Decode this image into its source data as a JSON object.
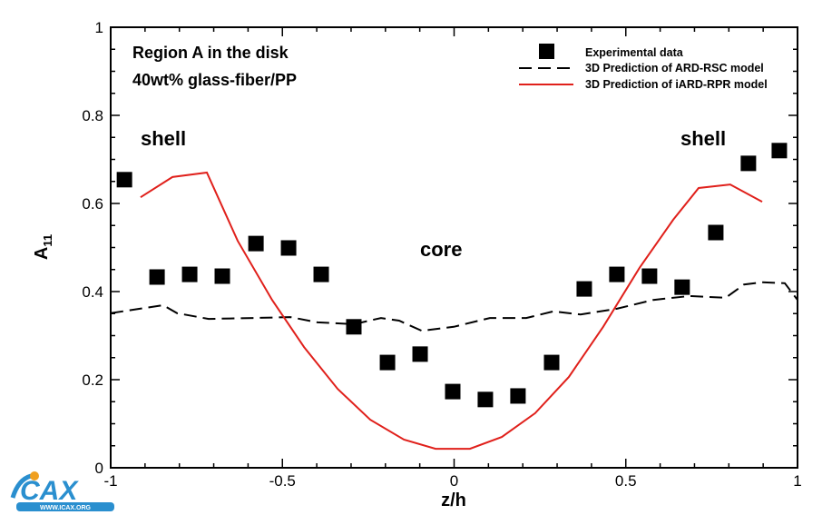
{
  "chart_data": {
    "type": "scatter",
    "title": "",
    "xlabel": "z/h",
    "ylabel": "A",
    "ylabel_subscript": "11",
    "xlim": [
      -1,
      1
    ],
    "ylim": [
      0,
      1
    ],
    "x_ticks": [
      -1,
      -0.5,
      0,
      0.5,
      1
    ],
    "x_tick_labels": [
      "-1",
      "-0.5",
      "0",
      "0.5",
      "1"
    ],
    "y_ticks": [
      0,
      0.2,
      0.4,
      0.6,
      0.8,
      1
    ],
    "y_tick_labels": [
      "0",
      "0.2",
      "0.4",
      "0.6",
      "0.8",
      "1"
    ],
    "grid": false,
    "legend_position": "top-right",
    "annotations": {
      "region": "Region A in the disk",
      "material": "40wt% glass-fiber/PP",
      "shell_left": "shell",
      "shell_right": "shell",
      "core": "core"
    },
    "series": [
      {
        "name": "Experimental data",
        "type": "scatter",
        "marker": "square",
        "color": "#000000",
        "x": [
          -0.96,
          -0.865,
          -0.77,
          -0.675,
          -0.577,
          -0.482,
          -0.387,
          -0.292,
          -0.194,
          -0.099,
          -0.004,
          0.091,
          0.186,
          0.284,
          0.379,
          0.474,
          0.569,
          0.664,
          0.762,
          0.857,
          0.947
        ],
        "y": [
          0.654,
          0.433,
          0.439,
          0.435,
          0.509,
          0.499,
          0.439,
          0.32,
          0.239,
          0.258,
          0.173,
          0.155,
          0.163,
          0.239,
          0.406,
          0.439,
          0.435,
          0.41,
          0.534,
          0.691,
          0.72
        ]
      },
      {
        "name": "3D Prediction of ARD-RSC model",
        "type": "line",
        "style": "dashed",
        "color": "#000000",
        "x": [
          -1,
          -0.847,
          -0.807,
          -0.715,
          -0.583,
          -0.477,
          -0.398,
          -0.292,
          -0.213,
          -0.16,
          -0.094,
          -0.001,
          0.104,
          0.21,
          0.289,
          0.368,
          0.474,
          0.58,
          0.686,
          0.791,
          0.844,
          0.897,
          0.963,
          1
        ],
        "y": [
          0.351,
          0.369,
          0.351,
          0.338,
          0.34,
          0.342,
          0.33,
          0.326,
          0.34,
          0.334,
          0.311,
          0.32,
          0.34,
          0.34,
          0.355,
          0.348,
          0.361,
          0.381,
          0.39,
          0.386,
          0.416,
          0.421,
          0.419,
          0.381
        ]
      },
      {
        "name": "3D Prediction of iARD-RPR model",
        "type": "line",
        "style": "solid",
        "color": "#e0201b",
        "x": [
          -0.913,
          -0.82,
          -0.72,
          -0.63,
          -0.53,
          -0.437,
          -0.339,
          -0.244,
          -0.146,
          -0.054,
          0.046,
          0.139,
          0.236,
          0.334,
          0.434,
          0.54,
          0.638,
          0.712,
          0.804,
          0.897
        ],
        "y": [
          0.614,
          0.66,
          0.67,
          0.515,
          0.381,
          0.274,
          0.179,
          0.109,
          0.064,
          0.043,
          0.043,
          0.07,
          0.124,
          0.206,
          0.32,
          0.454,
          0.563,
          0.635,
          0.643,
          0.604
        ]
      }
    ]
  },
  "logo": {
    "text": "ICAX",
    "url_text": "WWW.ICAX.ORG"
  }
}
